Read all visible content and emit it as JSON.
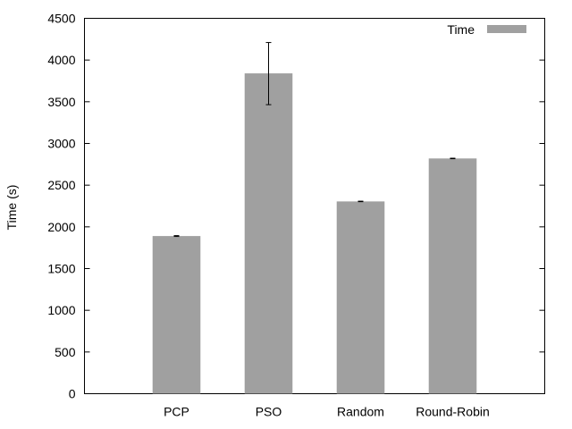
{
  "chart_data": {
    "type": "bar",
    "title": "",
    "xlabel": "",
    "ylabel": "Time (s)",
    "ylim": [
      0,
      4500
    ],
    "yticks": [
      0,
      500,
      1000,
      1500,
      2000,
      2500,
      3000,
      3500,
      4000,
      4500
    ],
    "categories": [
      "PCP",
      "PSO",
      "Random",
      "Round-Robin"
    ],
    "series": [
      {
        "name": "Time",
        "values": [
          1890,
          3840,
          2305,
          2820
        ],
        "error_low": [
          1885,
          3465,
          2302,
          2817
        ],
        "error_high": [
          1895,
          4210,
          2308,
          2823
        ],
        "color": "#a0a0a0"
      }
    ],
    "legend_position": "top-right",
    "grid": false
  }
}
